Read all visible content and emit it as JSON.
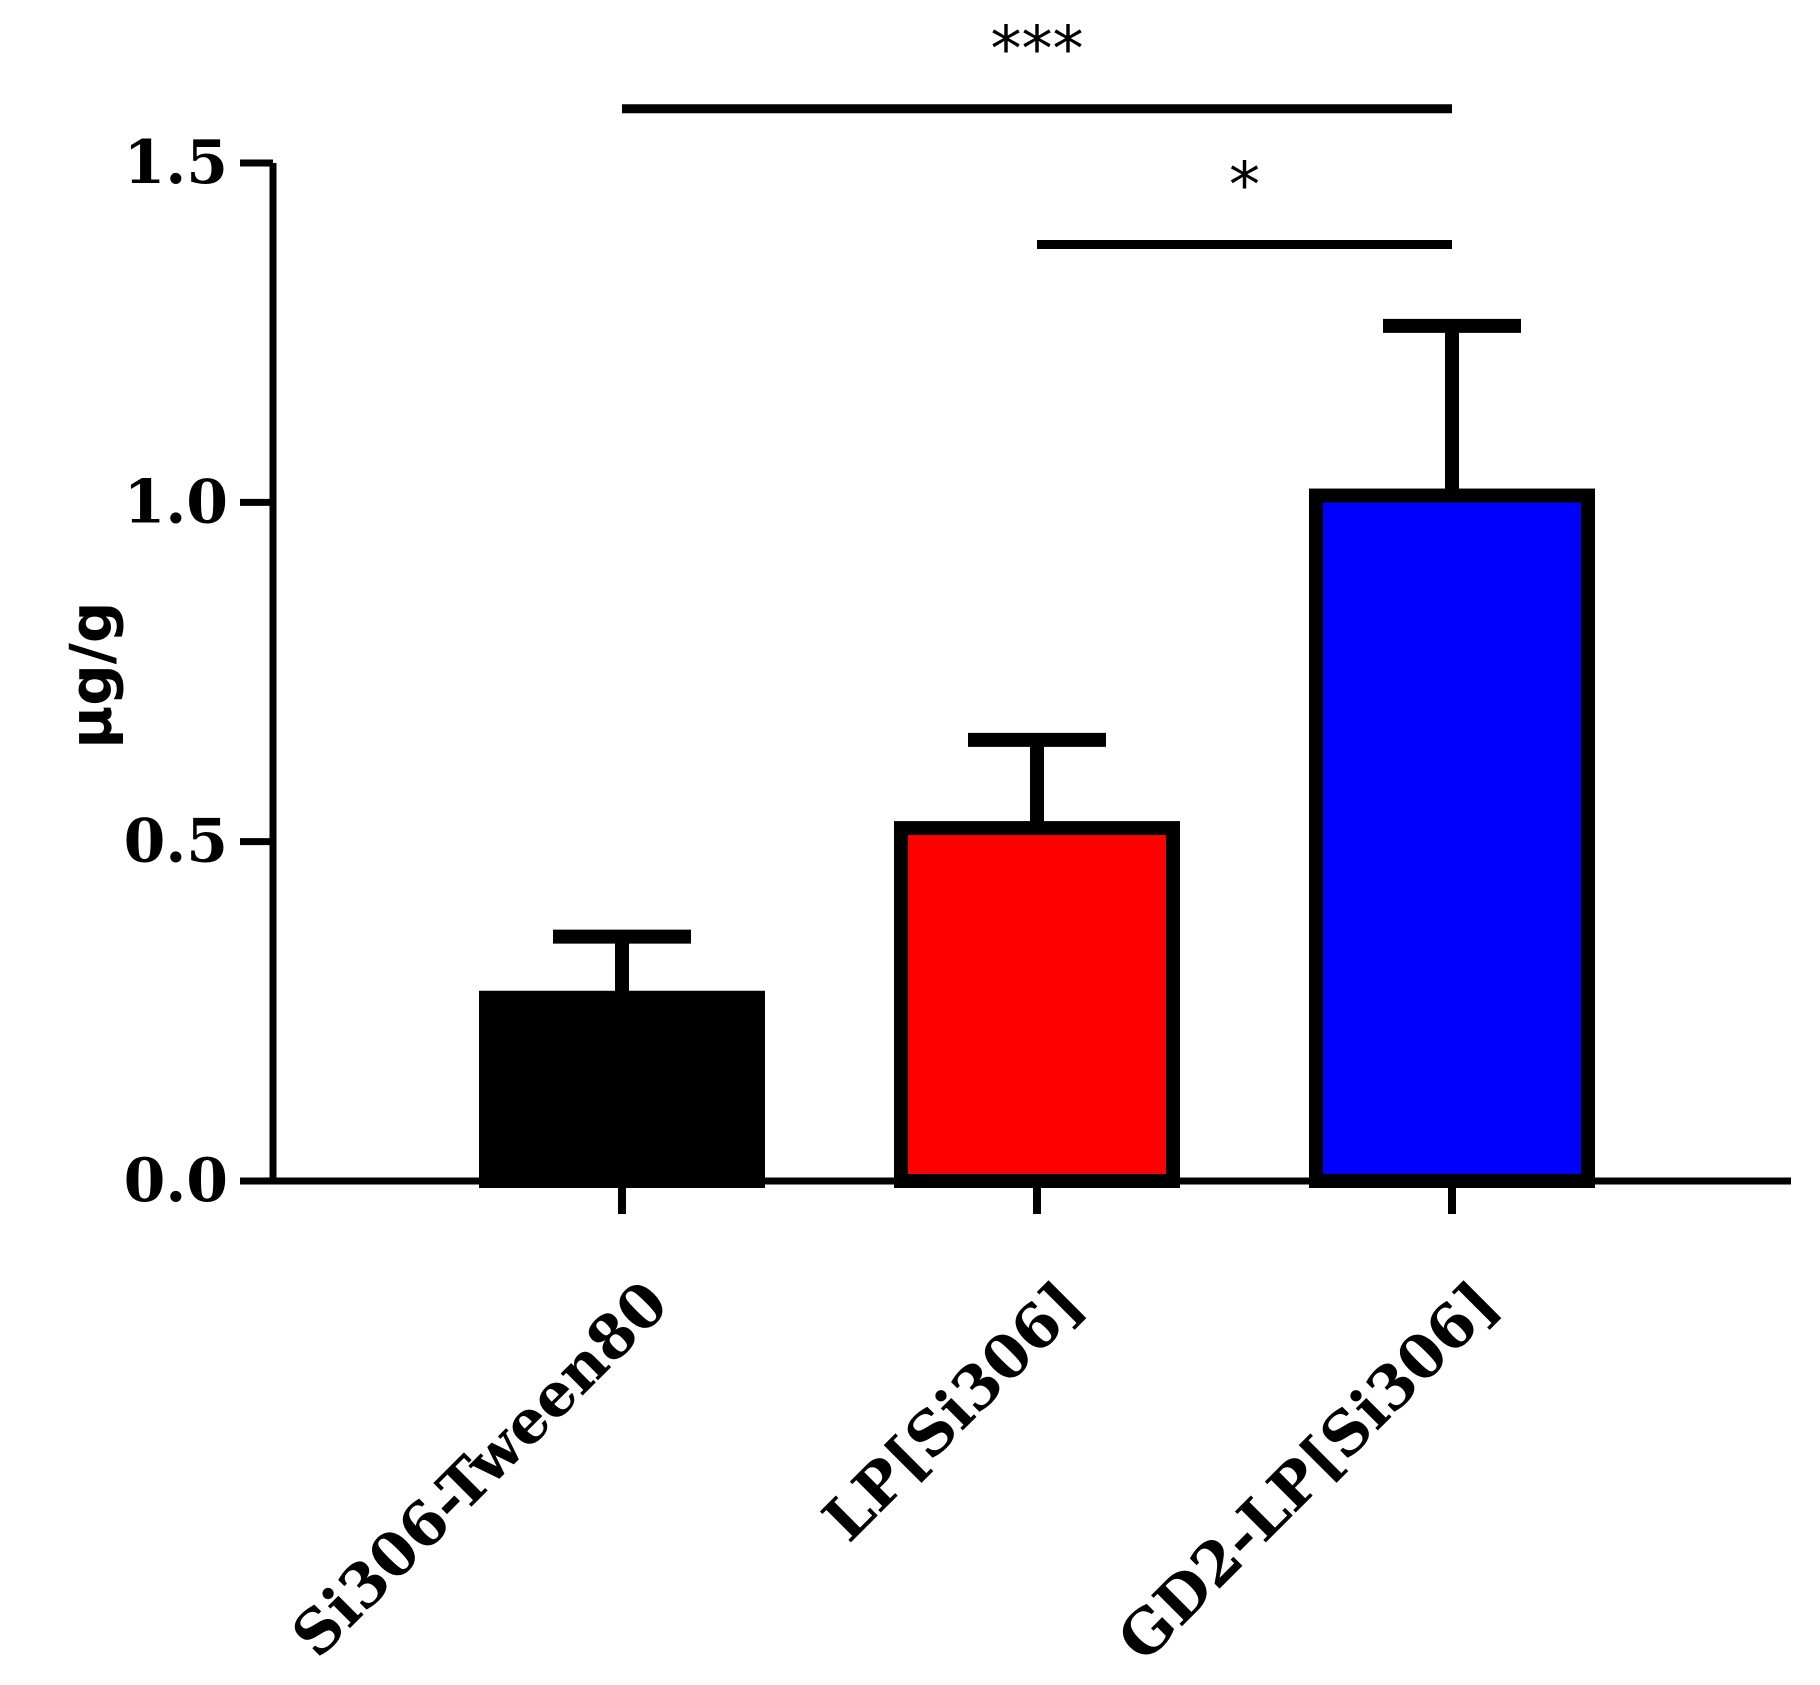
{
  "chart_data": {
    "type": "bar",
    "title": "",
    "xlabel": "",
    "ylabel": "µg/g",
    "ylim": [
      0,
      1.5
    ],
    "yticks": [
      0.0,
      0.5,
      1.0,
      1.5
    ],
    "ytick_labels": [
      "0.0",
      "0.5",
      "1.0",
      "1.5"
    ],
    "categories": [
      "Si306-Tween80",
      "LP[Si306]",
      "GD2-LP[Si306]"
    ],
    "values": [
      0.27,
      0.52,
      1.01
    ],
    "errors": [
      0.09,
      0.13,
      0.25
    ],
    "colors": [
      "#000000",
      "#ff0000",
      "#0000ff"
    ],
    "significance": [
      {
        "from": 0,
        "to": 2,
        "label": "***",
        "y": 1.58
      },
      {
        "from": 1,
        "to": 2,
        "label": "*",
        "y": 1.38
      }
    ]
  }
}
